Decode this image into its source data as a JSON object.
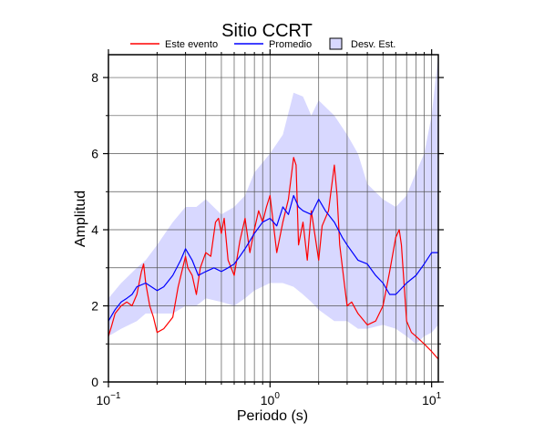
{
  "chart_data": {
    "type": "line",
    "title": "Sitio CCRT",
    "xlabel": "Periodo (s)",
    "ylabel": "Amplitud",
    "x_scale": "log",
    "xlim": [
      0.1,
      11
    ],
    "ylim": [
      0,
      8.6
    ],
    "grid": true,
    "legend_position": "top",
    "x_ticks": [
      {
        "value": 0.1,
        "base": "10",
        "exp": "−1"
      },
      {
        "value": 1,
        "base": "10",
        "exp": "0"
      },
      {
        "value": 10,
        "base": "10",
        "exp": "1"
      }
    ],
    "y_ticks": [
      0,
      2,
      4,
      6,
      8
    ],
    "legend": [
      {
        "label": "Este evento",
        "kind": "line",
        "color": "#ff0000"
      },
      {
        "label": "Promedio",
        "kind": "line",
        "color": "#0000ff"
      },
      {
        "label": "Desv. Est.",
        "kind": "box",
        "color": "#d8d8ff"
      }
    ],
    "series": [
      {
        "name": "Este evento",
        "color": "#ff0000",
        "x": [
          0.1,
          0.105,
          0.11,
          0.12,
          0.13,
          0.14,
          0.15,
          0.16,
          0.165,
          0.17,
          0.18,
          0.19,
          0.2,
          0.22,
          0.25,
          0.27,
          0.3,
          0.31,
          0.33,
          0.35,
          0.37,
          0.4,
          0.43,
          0.46,
          0.48,
          0.5,
          0.52,
          0.55,
          0.6,
          0.65,
          0.7,
          0.75,
          0.8,
          0.85,
          0.9,
          0.95,
          1.0,
          1.1,
          1.2,
          1.3,
          1.4,
          1.45,
          1.5,
          1.6,
          1.7,
          1.8,
          2.0,
          2.1,
          2.3,
          2.5,
          2.6,
          2.7,
          2.9,
          3.0,
          3.2,
          3.5,
          4.0,
          4.5,
          5.0,
          5.5,
          6.0,
          6.3,
          6.5,
          7.0,
          7.5,
          8.0,
          9.0,
          10.0,
          11.0
        ],
        "y": [
          1.2,
          1.5,
          1.8,
          2.0,
          2.1,
          2.0,
          2.3,
          2.9,
          3.1,
          2.6,
          2.0,
          1.7,
          1.3,
          1.4,
          1.7,
          2.5,
          3.3,
          3.0,
          2.8,
          2.3,
          3.0,
          3.4,
          3.3,
          4.2,
          4.3,
          3.9,
          4.3,
          3.2,
          2.8,
          3.7,
          4.3,
          3.4,
          4.0,
          4.5,
          4.2,
          4.6,
          4.9,
          3.4,
          4.2,
          4.8,
          5.9,
          5.7,
          3.6,
          4.2,
          3.2,
          4.5,
          3.2,
          4.1,
          4.5,
          5.7,
          4.9,
          3.6,
          2.5,
          2.0,
          2.1,
          1.8,
          1.5,
          1.6,
          2.0,
          2.9,
          3.8,
          4.0,
          3.6,
          1.6,
          1.3,
          1.2,
          1.0,
          0.8,
          0.6
        ]
      },
      {
        "name": "Promedio",
        "color": "#0000ff",
        "x": [
          0.1,
          0.11,
          0.12,
          0.13,
          0.14,
          0.15,
          0.17,
          0.2,
          0.22,
          0.25,
          0.28,
          0.3,
          0.33,
          0.36,
          0.4,
          0.45,
          0.5,
          0.55,
          0.6,
          0.65,
          0.7,
          0.8,
          0.9,
          1.0,
          1.1,
          1.2,
          1.3,
          1.4,
          1.5,
          1.6,
          1.8,
          2.0,
          2.2,
          2.5,
          2.8,
          3.0,
          3.5,
          4.0,
          4.5,
          5.0,
          5.5,
          6.0,
          7.0,
          8.0,
          9.0,
          10.0,
          11.0
        ],
        "y": [
          1.6,
          1.9,
          2.1,
          2.2,
          2.3,
          2.5,
          2.6,
          2.4,
          2.5,
          2.8,
          3.2,
          3.5,
          3.2,
          2.8,
          2.9,
          3.0,
          2.9,
          3.0,
          3.1,
          3.3,
          3.5,
          3.9,
          4.2,
          4.3,
          4.1,
          4.6,
          4.4,
          4.9,
          4.6,
          4.5,
          4.4,
          4.8,
          4.5,
          4.2,
          3.8,
          3.6,
          3.2,
          3.1,
          2.8,
          2.6,
          2.3,
          2.3,
          2.6,
          2.8,
          3.1,
          3.4,
          3.4
        ]
      }
    ],
    "band": {
      "name": "Desv. Est.",
      "color": "#d8d8ff",
      "x": [
        0.1,
        0.12,
        0.15,
        0.17,
        0.2,
        0.25,
        0.3,
        0.35,
        0.4,
        0.5,
        0.6,
        0.7,
        0.8,
        1.0,
        1.2,
        1.4,
        1.6,
        1.8,
        2.0,
        2.5,
        3.0,
        3.5,
        4.0,
        5.0,
        6.0,
        7.0,
        8.0,
        9.0,
        10.0,
        11.0
      ],
      "upper": [
        2.2,
        2.6,
        3.0,
        3.2,
        3.6,
        4.2,
        4.6,
        4.6,
        4.8,
        4.4,
        4.6,
        4.9,
        5.5,
        6.0,
        6.5,
        7.6,
        7.5,
        7.0,
        7.4,
        7.0,
        6.5,
        6.0,
        5.2,
        4.8,
        4.6,
        4.9,
        5.5,
        6.0,
        7.0,
        8.6
      ],
      "lower": [
        1.2,
        1.4,
        1.6,
        1.8,
        1.8,
        1.8,
        2.0,
        2.0,
        2.2,
        2.1,
        2.0,
        2.2,
        2.4,
        2.6,
        2.6,
        2.5,
        2.3,
        2.1,
        1.9,
        1.6,
        1.6,
        1.4,
        1.4,
        1.5,
        1.4,
        1.2,
        1.0,
        1.2,
        1.3,
        1.5
      ]
    }
  }
}
